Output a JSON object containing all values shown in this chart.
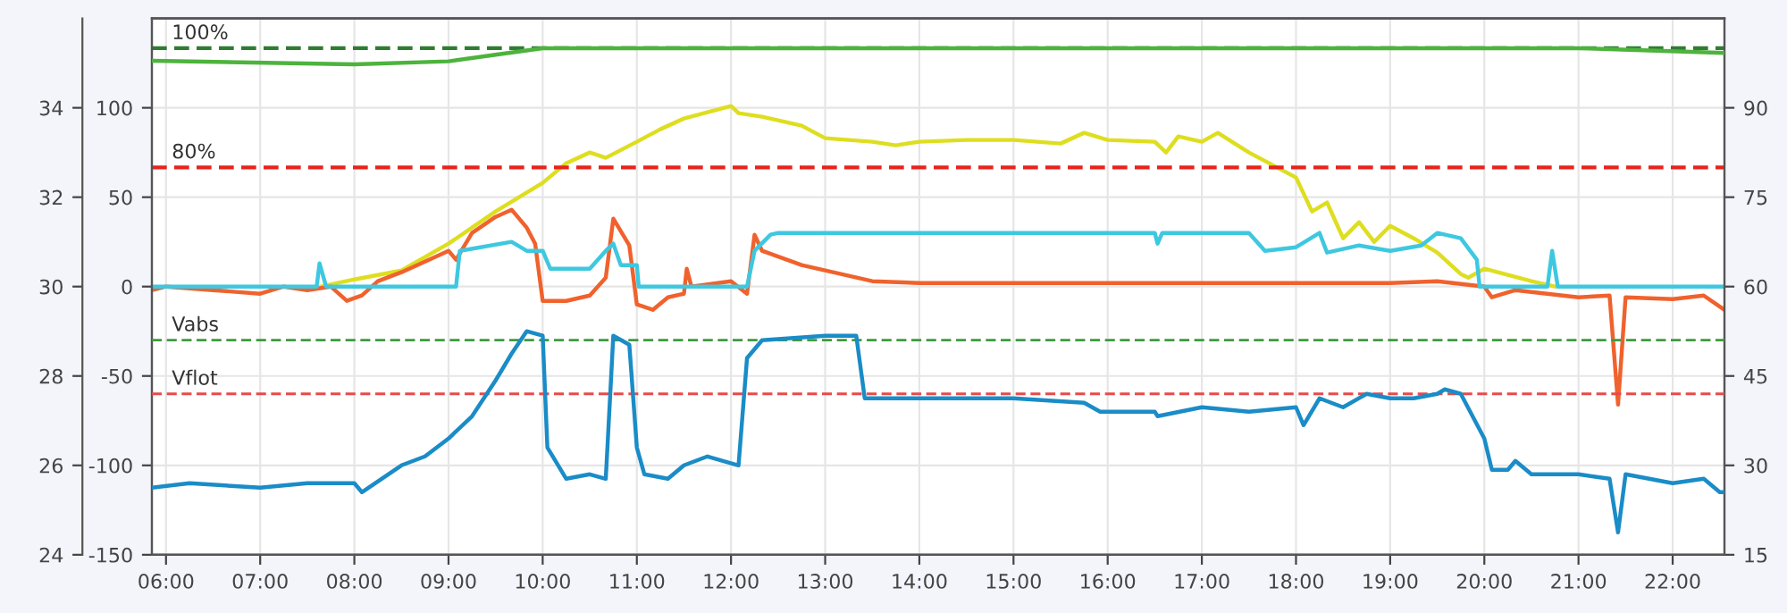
{
  "chart_data": {
    "type": "line",
    "xlim": [
      5.85,
      22.55
    ],
    "xticks": [
      {
        "value": 6,
        "label": "06:00"
      },
      {
        "value": 7,
        "label": "07:00"
      },
      {
        "value": 8,
        "label": "08:00"
      },
      {
        "value": 9,
        "label": "09:00"
      },
      {
        "value": 10,
        "label": "10:00"
      },
      {
        "value": 11,
        "label": "11:00"
      },
      {
        "value": 12,
        "label": "12:00"
      },
      {
        "value": 13,
        "label": "13:00"
      },
      {
        "value": 14,
        "label": "14:00"
      },
      {
        "value": 15,
        "label": "15:00"
      },
      {
        "value": 16,
        "label": "16:00"
      },
      {
        "value": 17,
        "label": "17:00"
      },
      {
        "value": 18,
        "label": "18:00"
      },
      {
        "value": 19,
        "label": "19:00"
      },
      {
        "value": 20,
        "label": "20:00"
      },
      {
        "value": 21,
        "label": "21:00"
      },
      {
        "value": 22,
        "label": "22:00"
      }
    ],
    "ylim": [
      -150,
      150
    ],
    "yticks": [
      -150,
      -100,
      -50,
      0,
      50,
      100
    ],
    "y2lim": [
      15,
      105
    ],
    "y2ticks": [
      15,
      30,
      45,
      60,
      75,
      90
    ],
    "y3lim": [
      24,
      36
    ],
    "y3ticks": [
      24,
      26,
      28,
      30,
      32,
      34
    ],
    "grid": true,
    "line_style": "solid",
    "marker": "none",
    "ref_lines": [
      {
        "axis": "y2",
        "value": 100,
        "label": "100%",
        "color": "#2e7d32",
        "line_style": "dashed"
      },
      {
        "axis": "y2",
        "value": 80,
        "label": "80%",
        "color": "#e8231c",
        "line_style": "dashed"
      },
      {
        "axis": "y3",
        "value": 28.8,
        "label": "Vabs",
        "color": "#3f9a3f",
        "line_style": "dashed"
      },
      {
        "axis": "y3",
        "value": 27.6,
        "label": "Vflot",
        "color": "#e84a4a",
        "line_style": "dashed"
      }
    ],
    "series": [
      {
        "color": "#4db33d",
        "axis": "y2",
        "x": [
          5.85,
          8.0,
          9.0,
          9.5,
          10.0,
          12.0,
          16.0,
          20.0,
          21.0,
          21.4,
          22.55
        ],
        "values": [
          97.9,
          97.3,
          97.8,
          98.9,
          100,
          100,
          100,
          100,
          100,
          99.8,
          99.2
        ]
      },
      {
        "color": "#dede20",
        "x": [
          7.65,
          8.0,
          8.5,
          9.0,
          9.5,
          10.0,
          10.25,
          10.5,
          10.67,
          11.0,
          11.25,
          11.5,
          12.0,
          12.08,
          12.33,
          12.5,
          12.75,
          13.0,
          13.5,
          13.75,
          14.0,
          14.5,
          15.0,
          15.5,
          15.75,
          16.0,
          16.5,
          16.62,
          16.75,
          17.0,
          17.17,
          17.5,
          17.75,
          18.0,
          18.17,
          18.33,
          18.5,
          18.67,
          18.83,
          19.0,
          19.25,
          19.5,
          19.75,
          19.83,
          20.0,
          20.5,
          20.75
        ],
        "values": [
          0,
          4,
          9,
          24,
          42,
          58,
          69,
          75,
          72,
          81,
          88,
          94,
          101,
          97,
          95,
          93,
          90,
          83,
          81,
          79,
          81,
          82,
          82,
          80,
          86,
          82,
          81,
          75,
          84,
          81,
          86,
          75,
          68,
          61,
          42,
          47,
          27,
          36,
          25,
          34,
          27,
          19,
          7,
          5,
          10,
          3,
          0
        ]
      },
      {
        "color": "#f0622d",
        "x": [
          5.85,
          6.0,
          6.5,
          7.0,
          7.25,
          7.5,
          7.75,
          7.92,
          8.08,
          8.25,
          8.5,
          8.75,
          9.0,
          9.08,
          9.25,
          9.5,
          9.67,
          9.83,
          9.92,
          10.0,
          10.25,
          10.5,
          10.67,
          10.75,
          10.92,
          11.0,
          11.17,
          11.33,
          11.5,
          11.53,
          11.58,
          12.0,
          12.17,
          12.25,
          12.33,
          12.75,
          13.0,
          13.5,
          14.0,
          15.0,
          16.0,
          17.0,
          18.0,
          19.0,
          19.5,
          20.0,
          20.08,
          20.33,
          20.5,
          21.0,
          21.33,
          21.42,
          21.5,
          22.0,
          22.33,
          22.55
        ],
        "values": [
          -2,
          0,
          -2,
          -4,
          0,
          -2,
          0,
          -8,
          -5,
          3,
          8,
          14,
          20,
          15,
          30,
          39,
          43,
          33,
          24,
          -8,
          -8,
          -5,
          5,
          38,
          23,
          -10,
          -13,
          -6,
          -4,
          10,
          0,
          3,
          -4,
          29,
          20,
          12,
          9,
          3,
          2,
          2,
          2,
          2,
          2,
          2,
          3,
          0,
          -6,
          -2,
          -3,
          -6,
          -5,
          -66,
          -6,
          -7,
          -5,
          -13
        ]
      },
      {
        "color": "#3ec8e0",
        "x": [
          5.85,
          7.6,
          7.63,
          7.7,
          9.08,
          9.12,
          9.67,
          9.83,
          10.0,
          10.08,
          10.5,
          10.67,
          10.75,
          10.83,
          11.0,
          11.02,
          12.17,
          12.25,
          12.42,
          12.5,
          16.5,
          16.53,
          16.58,
          17.0,
          17.5,
          17.67,
          18.0,
          18.25,
          18.33,
          18.67,
          19.0,
          19.33,
          19.5,
          19.75,
          19.92,
          19.95,
          20.67,
          20.72,
          20.78,
          22.55
        ],
        "values": [
          0,
          0,
          13,
          0,
          0,
          20,
          25,
          20,
          20,
          10,
          10,
          20,
          24,
          12,
          12,
          0,
          0,
          20,
          29,
          30,
          30,
          24,
          30,
          30,
          30,
          20,
          22,
          30,
          19,
          23,
          20,
          23,
          30,
          27,
          15,
          0,
          0,
          20,
          0,
          0
        ]
      },
      {
        "color": "#1a8cc7",
        "axis": "y3",
        "x": [
          5.85,
          6.25,
          7.0,
          7.5,
          8.0,
          8.08,
          8.5,
          8.75,
          9.0,
          9.25,
          9.5,
          9.67,
          9.83,
          10.0,
          10.05,
          10.25,
          10.5,
          10.67,
          10.75,
          10.92,
          11.0,
          11.08,
          11.33,
          11.5,
          11.75,
          12.08,
          12.17,
          12.33,
          13.0,
          13.33,
          13.42,
          14.0,
          15.0,
          15.75,
          15.92,
          16.5,
          16.53,
          17.0,
          17.5,
          18.0,
          18.08,
          18.25,
          18.5,
          18.75,
          19.0,
          19.25,
          19.5,
          19.58,
          19.75,
          20.0,
          20.08,
          20.25,
          20.33,
          20.5,
          21.0,
          21.33,
          21.42,
          21.5,
          22.0,
          22.33,
          22.5,
          22.55
        ],
        "values": [
          25.5,
          25.6,
          25.5,
          25.6,
          25.6,
          25.4,
          26.0,
          26.2,
          26.6,
          27.1,
          27.9,
          28.5,
          29.0,
          28.9,
          26.4,
          25.7,
          25.8,
          25.7,
          28.9,
          28.7,
          26.4,
          25.8,
          25.7,
          26.0,
          26.2,
          26.0,
          28.4,
          28.8,
          28.9,
          28.9,
          27.5,
          27.5,
          27.5,
          27.4,
          27.2,
          27.2,
          27.1,
          27.3,
          27.2,
          27.3,
          26.9,
          27.5,
          27.3,
          27.6,
          27.5,
          27.5,
          27.6,
          27.7,
          27.6,
          26.6,
          25.9,
          25.9,
          26.1,
          25.8,
          25.8,
          25.7,
          24.5,
          25.8,
          25.6,
          25.7,
          25.4,
          25.4
        ]
      }
    ]
  }
}
